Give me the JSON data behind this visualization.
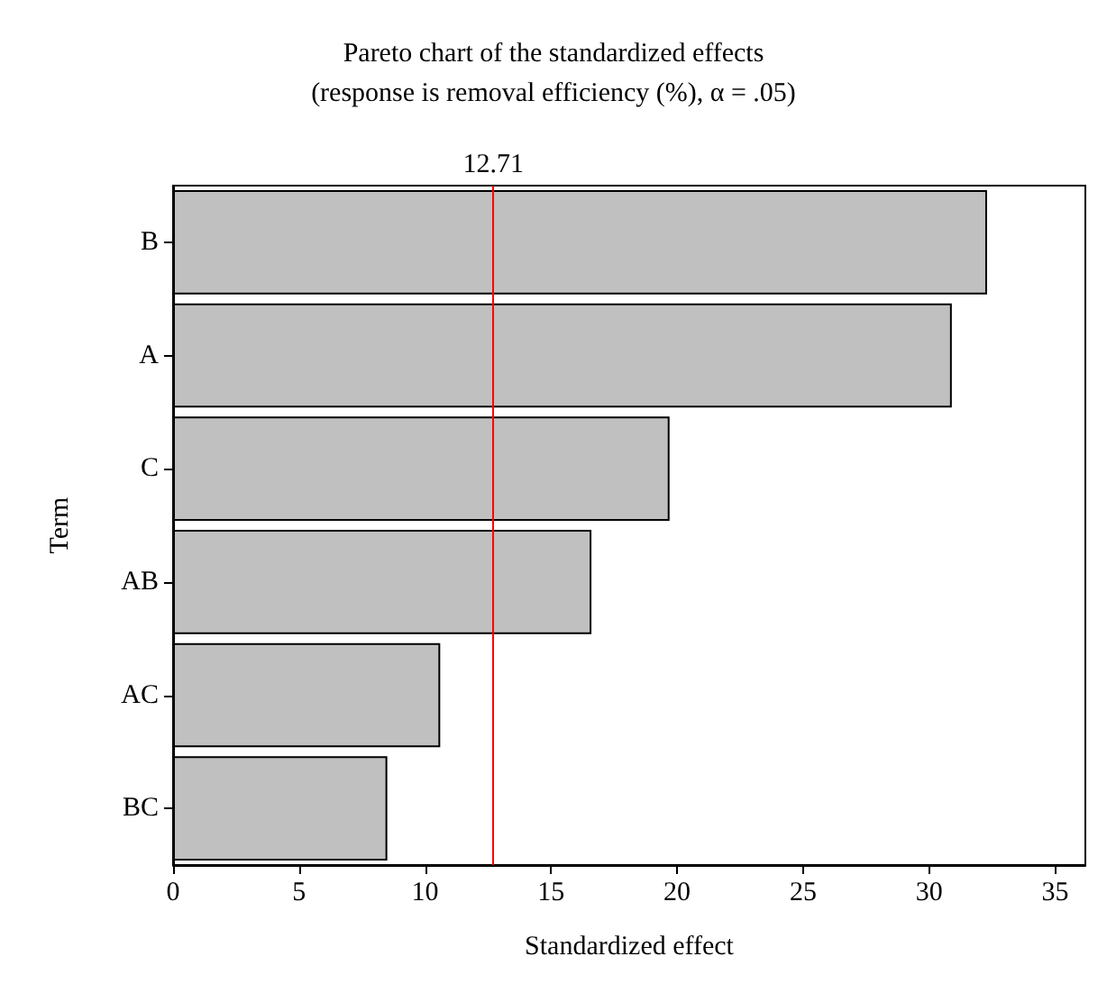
{
  "chart_data": {
    "type": "bar",
    "orientation": "horizontal",
    "title": "Pareto chart of the standardized effects\n(response is removal efficiency (%), α = .05)",
    "xlabel": "Standardized effect",
    "ylabel": "Term",
    "categories": [
      "B",
      "A",
      "C",
      "AB",
      "AC",
      "BC"
    ],
    "values": [
      32.3,
      30.9,
      19.7,
      16.6,
      10.6,
      8.5
    ],
    "color": "#c0c0c0",
    "xlim": [
      0,
      36.2
    ],
    "xticks": [
      0,
      5,
      10,
      15,
      20,
      25,
      30,
      35
    ],
    "ref_lines": [
      {
        "axis": "x",
        "value": 12.71,
        "label": "12.71",
        "color": "#ff0000"
      }
    ]
  }
}
